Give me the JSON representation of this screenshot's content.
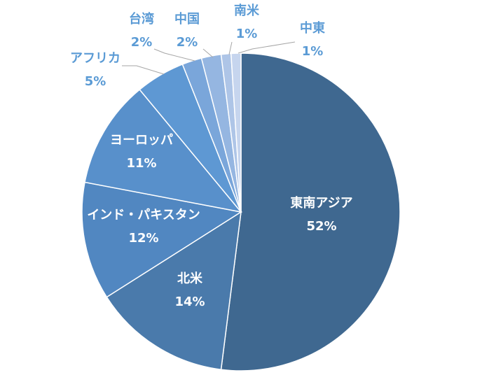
{
  "chart_data": {
    "type": "pie",
    "title": "",
    "slices": [
      {
        "label": "東南アジア",
        "value": 52,
        "display": "52%",
        "color": "#3f6890"
      },
      {
        "label": "北米",
        "value": 14,
        "display": "14%",
        "color": "#4a7aab"
      },
      {
        "label": "インド・パキスタン",
        "value": 12,
        "display": "12%",
        "color": "#5187c1"
      },
      {
        "label": "ヨーロッパ",
        "value": 11,
        "display": "11%",
        "color": "#5890cb"
      },
      {
        "label": "アフリカ",
        "value": 5,
        "display": "5%",
        "color": "#5e98d3"
      },
      {
        "label": "台湾",
        "value": 2,
        "display": "2%",
        "color": "#7aa6da"
      },
      {
        "label": "中国",
        "value": 2,
        "display": "2%",
        "color": "#95b6e1"
      },
      {
        "label": "南米",
        "value": 1,
        "display": "1%",
        "color": "#aec5e7"
      },
      {
        "label": "中東",
        "value": 1,
        "display": "1%",
        "color": "#c6d5ee"
      }
    ],
    "start_angle_deg": 0,
    "direction": "clockwise",
    "label_color_inside": "#ffffff",
    "label_color_outside": "#5b9bd5",
    "leader_color": "#a6a6a6",
    "legend": "none"
  }
}
